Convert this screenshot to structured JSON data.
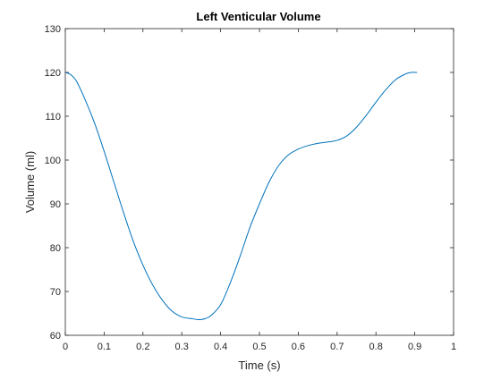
{
  "chart_data": {
    "type": "line",
    "title": "Left Venticular Volume",
    "xlabel": "Time (s)",
    "ylabel": "Volume (ml)",
    "xlim": [
      0,
      1
    ],
    "ylim": [
      60,
      130
    ],
    "xticks": [
      0,
      0.1,
      0.2,
      0.3,
      0.4,
      0.5,
      0.6,
      0.7,
      0.8,
      0.9,
      1
    ],
    "xtick_labels": [
      "0",
      "0.1",
      "0.2",
      "0.3",
      "0.4",
      "0.5",
      "0.6",
      "0.7",
      "0.8",
      "0.9",
      "1"
    ],
    "yticks": [
      60,
      70,
      80,
      90,
      100,
      110,
      120,
      130
    ],
    "ytick_labels": [
      "60",
      "70",
      "80",
      "90",
      "100",
      "110",
      "120",
      "130"
    ],
    "grid": false,
    "line_color": "#0072BD",
    "series": [
      {
        "x": [
          0,
          0.01,
          0.02,
          0.03,
          0.05,
          0.075,
          0.1,
          0.125,
          0.15,
          0.175,
          0.2,
          0.225,
          0.25,
          0.275,
          0.3,
          0.325,
          0.34,
          0.35,
          0.36,
          0.375,
          0.4,
          0.425,
          0.45,
          0.475,
          0.5,
          0.525,
          0.55,
          0.575,
          0.6,
          0.625,
          0.65,
          0.675,
          0.7,
          0.725,
          0.75,
          0.775,
          0.8,
          0.825,
          0.85,
          0.875,
          0.89,
          0.905
        ],
        "y": [
          120,
          119.7,
          119,
          117.8,
          114,
          108.5,
          102,
          95,
          88,
          81.5,
          76,
          71.5,
          68,
          65.5,
          64.2,
          63.8,
          63.6,
          63.6,
          63.8,
          64.5,
          67,
          72,
          78,
          84.5,
          90,
          95,
          98.8,
          101.2,
          102.5,
          103.3,
          103.8,
          104.1,
          104.5,
          105.5,
          107.5,
          110.2,
          113.2,
          116,
          118.3,
          119.6,
          120,
          120
        ]
      }
    ]
  }
}
